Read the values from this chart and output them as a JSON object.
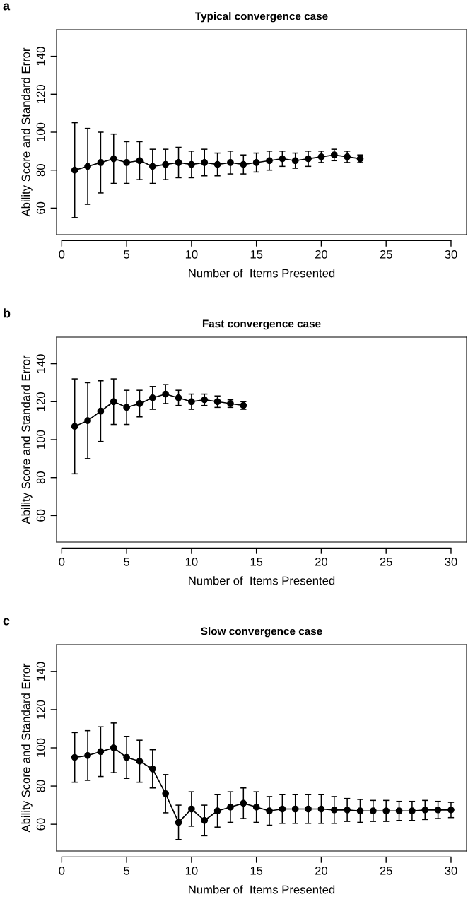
{
  "chart_data": [
    {
      "type": "line",
      "title": "Typical convergence case",
      "xlabel": "Number of  Items Presented",
      "ylabel": "Ability Score and Standard Error",
      "annotations": [
        "a"
      ],
      "x": [
        1,
        2,
        3,
        4,
        5,
        6,
        7,
        8,
        9,
        10,
        11,
        12,
        13,
        14,
        15,
        16,
        17,
        18,
        19,
        20,
        21,
        22,
        23
      ],
      "values": [
        80,
        82,
        84,
        86,
        84,
        85,
        82,
        83,
        84,
        83,
        84,
        83,
        84,
        83,
        84,
        85,
        86,
        85,
        86,
        87,
        88,
        87,
        86
      ],
      "errors": [
        25,
        20,
        16,
        13,
        11,
        10,
        9,
        8,
        8,
        7,
        7,
        6,
        6,
        5,
        5,
        5,
        4,
        4,
        4,
        3,
        3,
        3,
        2
      ],
      "color": "#000000",
      "marker": "circle",
      "line_style": "solid",
      "grid": false,
      "legend": false,
      "xlim": [
        -0.4,
        31.2
      ],
      "xticks": [
        0,
        5,
        10,
        15,
        20,
        25,
        30
      ],
      "ylim": [
        46,
        154
      ],
      "yticks": [
        60,
        80,
        100,
        120,
        140
      ]
    },
    {
      "type": "line",
      "title": "Fast convergence case",
      "xlabel": "Number of  Items Presented",
      "ylabel": "Ability Score and Standard Error",
      "annotations": [
        "b"
      ],
      "x": [
        1,
        2,
        3,
        4,
        5,
        6,
        7,
        8,
        9,
        10,
        11,
        12,
        13,
        14
      ],
      "values": [
        107,
        110,
        115,
        120,
        117,
        119,
        122,
        124,
        122,
        120,
        121,
        120,
        119,
        118
      ],
      "errors": [
        25,
        20,
        16,
        12,
        9,
        7,
        6,
        5,
        4,
        4,
        3,
        3,
        2,
        2
      ],
      "color": "#000000",
      "marker": "circle",
      "line_style": "solid",
      "grid": false,
      "legend": false,
      "xlim": [
        -0.4,
        31.2
      ],
      "xticks": [
        0,
        5,
        10,
        15,
        20,
        25,
        30
      ],
      "ylim": [
        46,
        154
      ],
      "yticks": [
        60,
        80,
        100,
        120,
        140
      ]
    },
    {
      "type": "line",
      "title": "Slow convergence case",
      "xlabel": "Number of  Items Presented",
      "ylabel": "Ability Score and Standard Error",
      "annotations": [
        "c"
      ],
      "x": [
        1,
        2,
        3,
        4,
        5,
        6,
        7,
        8,
        9,
        10,
        11,
        12,
        13,
        14,
        15,
        16,
        17,
        18,
        19,
        20,
        21,
        22,
        23,
        24,
        25,
        26,
        27,
        28,
        29,
        30
      ],
      "values": [
        95,
        96,
        98,
        100,
        95,
        93,
        89,
        76,
        61,
        68,
        62,
        67,
        69,
        71,
        69,
        67,
        68,
        68,
        68,
        68,
        67.5,
        67.5,
        67,
        67,
        67,
        67,
        67,
        67.5,
        67.5,
        67.5
      ],
      "errors": [
        13,
        13,
        13,
        13,
        11,
        11,
        10,
        10,
        9,
        9,
        8,
        8.5,
        8,
        8,
        8,
        7.5,
        7.5,
        7.5,
        7.5,
        7.5,
        7,
        6,
        6,
        5.5,
        5.5,
        5,
        5,
        5,
        4.5,
        4
      ],
      "color": "#000000",
      "marker": "circle",
      "line_style": "solid",
      "grid": false,
      "legend": false,
      "xlim": [
        -0.4,
        31.2
      ],
      "xticks": [
        0,
        5,
        10,
        15,
        20,
        25,
        30
      ],
      "ylim": [
        46,
        154
      ],
      "yticks": [
        60,
        80,
        100,
        120,
        140
      ]
    }
  ]
}
